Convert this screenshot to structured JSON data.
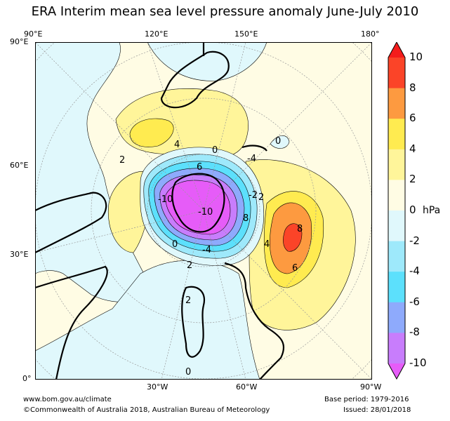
{
  "title": "ERA Interim mean sea level pressure anomaly June-July 2010",
  "axes": {
    "top": [
      "90°E",
      "120°E",
      "150°E",
      "180°"
    ],
    "left": [
      "90°E",
      "60°E",
      "30°E",
      "0°"
    ],
    "bottom": [
      "30°W",
      "60°W",
      "90°W"
    ]
  },
  "colorbar": {
    "unit": "hPa",
    "ticks": [
      "10",
      "8",
      "6",
      "4",
      "2",
      "0",
      "-2",
      "-4",
      "-6",
      "-8",
      "-10"
    ],
    "colors": {
      "over": "#f41c1c",
      "8_10": "#fb4428",
      "6_8": "#fd9a40",
      "4_6": "#ffeb50",
      "2_4": "#fff59a",
      "0_2": "#fffce4",
      "m2_0": "#e0f8fc",
      "m4_m2": "#9ee9fb",
      "m6_m4": "#5ce0fc",
      "m8_m6": "#8eaafc",
      "m10_m8": "#c87dfc",
      "under": "#e65cf8"
    }
  },
  "contour_labels": [
    "4",
    "0",
    "2",
    "6",
    "-10",
    "-10",
    "8",
    "-2",
    "2",
    "-4",
    "0",
    "4",
    "8",
    "6",
    "2",
    "0",
    "2",
    "0",
    "-4"
  ],
  "footer": {
    "url": "www.bom.gov.au/climate",
    "copyright": "©Commonwealth of Australia 2018, Australian Bureau of Meteorology",
    "base_period": "Base period: 1979-2016",
    "issued": "Issued: 28/01/2018"
  }
}
